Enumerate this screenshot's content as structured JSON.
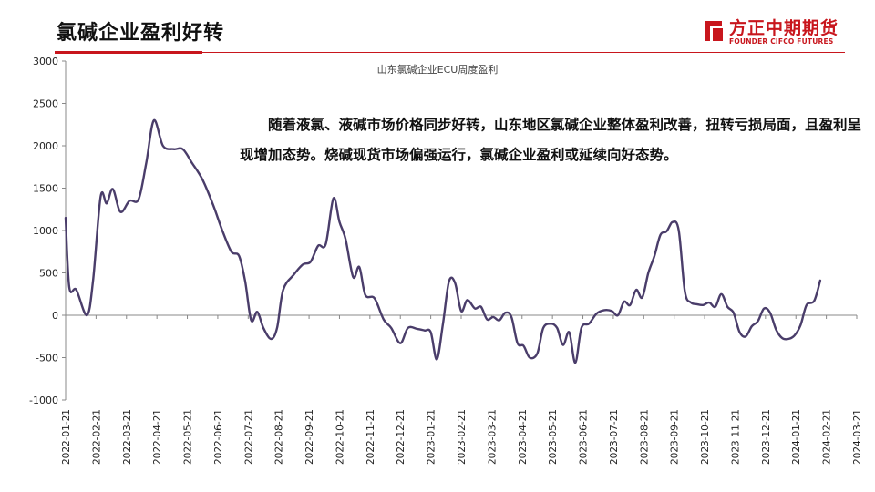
{
  "header": {
    "title": "氯碱企业盈利好转",
    "logo_name": "方正中期期货",
    "logo_sub": "FOUNDER CIFCO FUTURES"
  },
  "note": "随着液氯、液碱市场价格同步好转，山东地区氯碱企业整体盈利改善，扭转亏损局面，且盈利呈现增加态势。烧碱现货市场偏强运行，氯碱企业盈利或延续向好态势。",
  "colors": {
    "accent": "#c8161d",
    "line": "#4a3d6a"
  },
  "chart_data": {
    "type": "line",
    "title": "山东氯碱企业ECU周度盈利",
    "xlabel": "",
    "ylabel": "",
    "ylim": [
      -1000,
      3000
    ],
    "yticks": [
      3000,
      2500,
      2000,
      1500,
      1000,
      500,
      0,
      -500,
      -1000
    ],
    "grid": false,
    "legend": "none",
    "categories": [
      "2022-01-21",
      "2022-02-21",
      "2022-03-21",
      "2022-04-21",
      "2022-05-21",
      "2022-06-21",
      "2022-07-21",
      "2022-08-21",
      "2022-09-21",
      "2022-10-21",
      "2022-11-21",
      "2022-12-21",
      "2023-01-21",
      "2023-02-21",
      "2023-03-21",
      "2023-04-21",
      "2023-05-21",
      "2023-06-21",
      "2023-07-21",
      "2023-08-21",
      "2023-09-21",
      "2023-10-21",
      "2023-11-21",
      "2023-12-21",
      "2024-01-21",
      "2024-02-21",
      "2024-03-21"
    ],
    "series": [
      {
        "points": [
          [
            0,
            1150
          ],
          [
            0.12,
            330
          ],
          [
            0.35,
            300
          ],
          [
            0.7,
            0
          ],
          [
            0.9,
            400
          ],
          [
            1.15,
            1400
          ],
          [
            1.35,
            1320
          ],
          [
            1.55,
            1490
          ],
          [
            1.8,
            1220
          ],
          [
            2.1,
            1350
          ],
          [
            2.4,
            1370
          ],
          [
            2.65,
            1800
          ],
          [
            2.9,
            2300
          ],
          [
            3.2,
            2000
          ],
          [
            3.55,
            1960
          ],
          [
            3.85,
            1960
          ],
          [
            4.15,
            1800
          ],
          [
            4.5,
            1600
          ],
          [
            4.85,
            1300
          ],
          [
            5.15,
            1000
          ],
          [
            5.45,
            750
          ],
          [
            5.7,
            700
          ],
          [
            5.9,
            400
          ],
          [
            6.1,
            -60
          ],
          [
            6.3,
            40
          ],
          [
            6.5,
            -150
          ],
          [
            6.75,
            -280
          ],
          [
            6.95,
            -150
          ],
          [
            7.15,
            300
          ],
          [
            7.5,
            480
          ],
          [
            7.8,
            600
          ],
          [
            8.05,
            630
          ],
          [
            8.3,
            820
          ],
          [
            8.55,
            840
          ],
          [
            8.8,
            1380
          ],
          [
            9.0,
            1100
          ],
          [
            9.2,
            900
          ],
          [
            9.45,
            450
          ],
          [
            9.65,
            570
          ],
          [
            9.85,
            240
          ],
          [
            10.15,
            200
          ],
          [
            10.45,
            -50
          ],
          [
            10.7,
            -150
          ],
          [
            11.0,
            -330
          ],
          [
            11.25,
            -150
          ],
          [
            11.55,
            -160
          ],
          [
            11.8,
            -180
          ],
          [
            12.0,
            -200
          ],
          [
            12.2,
            -520
          ],
          [
            12.4,
            -100
          ],
          [
            12.6,
            400
          ],
          [
            12.8,
            380
          ],
          [
            13.0,
            50
          ],
          [
            13.2,
            180
          ],
          [
            13.45,
            80
          ],
          [
            13.65,
            100
          ],
          [
            13.85,
            -50
          ],
          [
            14.05,
            -20
          ],
          [
            14.25,
            -60
          ],
          [
            14.45,
            30
          ],
          [
            14.65,
            -20
          ],
          [
            14.85,
            -330
          ],
          [
            15.05,
            -360
          ],
          [
            15.25,
            -500
          ],
          [
            15.5,
            -450
          ],
          [
            15.7,
            -150
          ],
          [
            15.95,
            -100
          ],
          [
            16.15,
            -150
          ],
          [
            16.35,
            -350
          ],
          [
            16.55,
            -200
          ],
          [
            16.75,
            -560
          ],
          [
            16.95,
            -150
          ],
          [
            17.2,
            -100
          ],
          [
            17.45,
            20
          ],
          [
            17.7,
            60
          ],
          [
            17.95,
            50
          ],
          [
            18.15,
            0
          ],
          [
            18.35,
            160
          ],
          [
            18.55,
            120
          ],
          [
            18.75,
            300
          ],
          [
            18.95,
            210
          ],
          [
            19.15,
            500
          ],
          [
            19.35,
            700
          ],
          [
            19.55,
            950
          ],
          [
            19.75,
            990
          ],
          [
            19.95,
            1100
          ],
          [
            20.15,
            1000
          ],
          [
            20.35,
            280
          ],
          [
            20.55,
            150
          ],
          [
            20.75,
            130
          ],
          [
            20.95,
            120
          ],
          [
            21.15,
            150
          ],
          [
            21.35,
            100
          ],
          [
            21.55,
            250
          ],
          [
            21.75,
            100
          ],
          [
            21.95,
            30
          ],
          [
            22.15,
            -200
          ],
          [
            22.35,
            -250
          ],
          [
            22.55,
            -130
          ],
          [
            22.75,
            -70
          ],
          [
            22.95,
            80
          ],
          [
            23.15,
            30
          ],
          [
            23.35,
            -170
          ],
          [
            23.55,
            -270
          ],
          [
            23.75,
            -280
          ],
          [
            23.95,
            -240
          ],
          [
            24.15,
            -120
          ],
          [
            24.35,
            120
          ],
          [
            24.6,
            170
          ],
          [
            24.8,
            410
          ]
        ]
      }
    ]
  }
}
